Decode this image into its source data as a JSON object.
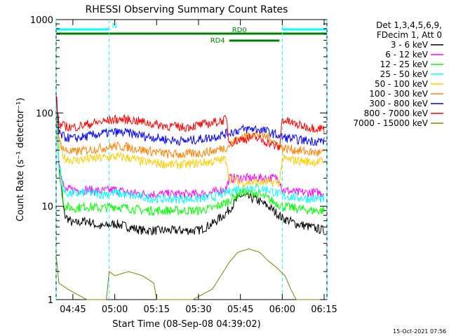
{
  "chart_data": {
    "type": "line",
    "title": "RHESSI Observing Summary Count Rates",
    "xlabel": "Start Time (08-Sep-08 04:39:02)",
    "ylabel": "Count Rate (s⁻¹ detector⁻¹)",
    "y_scale": "log",
    "ylim": [
      1,
      1000
    ],
    "xlim": [
      "04:39",
      "06:16"
    ],
    "x_ticks": [
      "04:45",
      "05:00",
      "05:15",
      "05:30",
      "05:45",
      "06:00",
      "06:15"
    ],
    "y_ticks": [
      "1",
      "10",
      "100",
      "1000"
    ],
    "timestamp": "15-Oct-2021 07:56",
    "legend_header": [
      "Det 1,3,4,5,6,9,",
      "FDecim 1, Att 0"
    ],
    "flags": [
      {
        "name": "N",
        "color": "#00ffff",
        "segments": [
          [
            "04:39",
            "04:58"
          ],
          [
            "06:00",
            "06:16"
          ]
        ]
      },
      {
        "name": "RD0",
        "color": "#008000",
        "segments": [
          [
            "04:39",
            "06:16"
          ]
        ]
      },
      {
        "name": "RD4",
        "color": "#008000",
        "segments": [
          [
            "05:41",
            "05:59"
          ]
        ]
      }
    ],
    "vlines": [
      "04:39",
      "04:58",
      "06:00",
      "06:16"
    ],
    "series": [
      {
        "name": "3 - 6 keV",
        "color": "#000000",
        "points": [
          [
            "04:39",
            150
          ],
          [
            "04:40",
            25
          ],
          [
            "04:42",
            8
          ],
          [
            "04:45",
            6.5
          ],
          [
            "04:50",
            7
          ],
          [
            "04:55",
            6
          ],
          [
            "05:00",
            6.5
          ],
          [
            "05:05",
            6
          ],
          [
            "05:10",
            5.5
          ],
          [
            "05:15",
            5.5
          ],
          [
            "05:20",
            5.5
          ],
          [
            "05:25",
            5.5
          ],
          [
            "05:30",
            5.5
          ],
          [
            "05:35",
            6.5
          ],
          [
            "05:40",
            8.5
          ],
          [
            "05:45",
            13
          ],
          [
            "05:50",
            12
          ],
          [
            "05:55",
            10
          ],
          [
            "06:00",
            7.5
          ],
          [
            "06:05",
            6.5
          ],
          [
            "06:10",
            6
          ],
          [
            "06:15",
            5.5
          ]
        ]
      },
      {
        "name": "6 - 12 keV",
        "color": "#ff00ff",
        "points": [
          [
            "04:39",
            140
          ],
          [
            "04:40",
            30
          ],
          [
            "04:42",
            15
          ],
          [
            "04:45",
            15
          ],
          [
            "04:50",
            15
          ],
          [
            "04:55",
            14.5
          ],
          [
            "05:00",
            15
          ],
          [
            "05:05",
            14
          ],
          [
            "05:10",
            13.5
          ],
          [
            "05:15",
            13.5
          ],
          [
            "05:20",
            13.5
          ],
          [
            "05:25",
            13.5
          ],
          [
            "05:30",
            13.5
          ],
          [
            "05:35",
            14
          ],
          [
            "05:40",
            15.5
          ],
          [
            "05:41",
            20
          ],
          [
            "05:45",
            20
          ],
          [
            "05:50",
            20
          ],
          [
            "05:55",
            20
          ],
          [
            "05:59",
            20
          ],
          [
            "06:00",
            15
          ],
          [
            "06:05",
            14
          ],
          [
            "06:10",
            14
          ],
          [
            "06:15",
            14
          ]
        ]
      },
      {
        "name": "12 - 25 keV",
        "color": "#00ff00",
        "points": [
          [
            "04:39",
            130
          ],
          [
            "04:40",
            25
          ],
          [
            "04:42",
            10
          ],
          [
            "04:45",
            9.5
          ],
          [
            "04:50",
            10
          ],
          [
            "04:55",
            9.5
          ],
          [
            "05:00",
            10
          ],
          [
            "05:05",
            9.5
          ],
          [
            "05:10",
            9
          ],
          [
            "05:15",
            9
          ],
          [
            "05:20",
            9
          ],
          [
            "05:25",
            9
          ],
          [
            "05:30",
            9
          ],
          [
            "05:35",
            9.5
          ],
          [
            "05:40",
            11
          ],
          [
            "05:45",
            14
          ],
          [
            "05:50",
            14
          ],
          [
            "05:55",
            12
          ],
          [
            "06:00",
            10
          ],
          [
            "06:05",
            9.5
          ],
          [
            "06:10",
            9
          ],
          [
            "06:15",
            9
          ]
        ]
      },
      {
        "name": "25 - 50 keV",
        "color": "#00ffff",
        "points": [
          [
            "04:39",
            130
          ],
          [
            "04:40",
            28
          ],
          [
            "04:42",
            14
          ],
          [
            "04:45",
            13.5
          ],
          [
            "04:50",
            14
          ],
          [
            "04:55",
            13.5
          ],
          [
            "05:00",
            14
          ],
          [
            "05:05",
            13
          ],
          [
            "05:10",
            12.5
          ],
          [
            "05:15",
            12
          ],
          [
            "05:20",
            12
          ],
          [
            "05:25",
            12
          ],
          [
            "05:30",
            12
          ],
          [
            "05:35",
            12.5
          ],
          [
            "05:40",
            14
          ],
          [
            "05:45",
            16
          ],
          [
            "05:50",
            16
          ],
          [
            "05:55",
            15
          ],
          [
            "06:00",
            13
          ],
          [
            "06:05",
            12.5
          ],
          [
            "06:10",
            12
          ],
          [
            "06:15",
            12
          ]
        ]
      },
      {
        "name": "50 - 100 keV",
        "color": "#ffcc00",
        "points": [
          [
            "04:39",
            140
          ],
          [
            "04:40",
            45
          ],
          [
            "04:42",
            33
          ],
          [
            "04:45",
            31
          ],
          [
            "04:50",
            32
          ],
          [
            "04:55",
            33
          ],
          [
            "05:00",
            34
          ],
          [
            "05:05",
            33
          ],
          [
            "05:10",
            30
          ],
          [
            "05:15",
            29
          ],
          [
            "05:20",
            28
          ],
          [
            "05:25",
            28
          ],
          [
            "05:30",
            29
          ],
          [
            "05:35",
            30
          ],
          [
            "05:40",
            32
          ],
          [
            "05:41",
            20
          ],
          [
            "05:45",
            18
          ],
          [
            "05:50",
            18
          ],
          [
            "05:55",
            18
          ],
          [
            "05:59",
            18
          ],
          [
            "06:00",
            32
          ],
          [
            "06:05",
            31
          ],
          [
            "06:10",
            30
          ],
          [
            "06:15",
            30
          ]
        ]
      },
      {
        "name": "100 - 300 keV",
        "color": "#ff8000",
        "points": [
          [
            "04:39",
            145
          ],
          [
            "04:40",
            50
          ],
          [
            "04:42",
            40
          ],
          [
            "04:45",
            38
          ],
          [
            "04:50",
            40
          ],
          [
            "04:55",
            42
          ],
          [
            "05:00",
            44
          ],
          [
            "05:05",
            43
          ],
          [
            "05:10",
            40
          ],
          [
            "05:15",
            38
          ],
          [
            "05:20",
            36
          ],
          [
            "05:25",
            36
          ],
          [
            "05:30",
            37
          ],
          [
            "05:35",
            39
          ],
          [
            "05:40",
            43
          ],
          [
            "05:45",
            55
          ],
          [
            "05:50",
            60
          ],
          [
            "05:55",
            55
          ],
          [
            "06:00",
            42
          ],
          [
            "06:05",
            40
          ],
          [
            "06:10",
            38
          ],
          [
            "06:15",
            37
          ]
        ]
      },
      {
        "name": "300 - 800 keV",
        "color": "#0000ff",
        "points": [
          [
            "04:39",
            150
          ],
          [
            "04:40",
            60
          ],
          [
            "04:42",
            55
          ],
          [
            "04:45",
            53
          ],
          [
            "04:50",
            56
          ],
          [
            "04:55",
            60
          ],
          [
            "05:00",
            62
          ],
          [
            "05:05",
            61
          ],
          [
            "05:10",
            57
          ],
          [
            "05:15",
            54
          ],
          [
            "05:20",
            51
          ],
          [
            "05:25",
            50
          ],
          [
            "05:30",
            52
          ],
          [
            "05:35",
            55
          ],
          [
            "05:40",
            60
          ],
          [
            "05:45",
            66
          ],
          [
            "05:50",
            68
          ],
          [
            "05:55",
            63
          ],
          [
            "06:00",
            55
          ],
          [
            "06:05",
            52
          ],
          [
            "06:10",
            50
          ],
          [
            "06:15",
            50
          ]
        ]
      },
      {
        "name": "800 - 7000 keV",
        "color": "#ff0000",
        "points": [
          [
            "04:39",
            160
          ],
          [
            "04:40",
            75
          ],
          [
            "04:42",
            72
          ],
          [
            "04:45",
            70
          ],
          [
            "04:50",
            75
          ],
          [
            "04:55",
            80
          ],
          [
            "05:00",
            85
          ],
          [
            "05:05",
            85
          ],
          [
            "05:10",
            80
          ],
          [
            "05:15",
            75
          ],
          [
            "05:20",
            72
          ],
          [
            "05:25",
            70
          ],
          [
            "05:30",
            74
          ],
          [
            "05:35",
            78
          ],
          [
            "05:40",
            85
          ],
          [
            "05:41",
            48
          ],
          [
            "05:45",
            52
          ],
          [
            "05:50",
            55
          ],
          [
            "05:55",
            48
          ],
          [
            "05:59",
            42
          ],
          [
            "06:00",
            85
          ],
          [
            "06:05",
            75
          ],
          [
            "06:10",
            70
          ],
          [
            "06:15",
            68
          ]
        ]
      },
      {
        "name": "7000 - 15000 keV",
        "color": "#808000",
        "points": [
          [
            "04:39",
            3
          ],
          [
            "04:40",
            1.5
          ],
          [
            "04:43",
            1.3
          ],
          [
            "04:50",
            1
          ],
          [
            "04:57",
            1
          ],
          [
            "04:58",
            2
          ],
          [
            "05:00",
            1.8
          ],
          [
            "05:05",
            2
          ],
          [
            "05:10",
            1.8
          ],
          [
            "05:14",
            1.5
          ],
          [
            "05:15",
            1
          ],
          [
            "05:28",
            1
          ],
          [
            "05:35",
            1.3
          ],
          [
            "05:38",
            1.8
          ],
          [
            "05:41",
            2.5
          ],
          [
            "05:44",
            3.2
          ],
          [
            "05:48",
            3.5
          ],
          [
            "05:52",
            3.2
          ],
          [
            "05:55",
            2.6
          ],
          [
            "05:58",
            2.2
          ],
          [
            "06:01",
            1.8
          ],
          [
            "06:03",
            1.3
          ],
          [
            "06:05",
            1
          ],
          [
            "06:15",
            1
          ]
        ]
      }
    ]
  }
}
